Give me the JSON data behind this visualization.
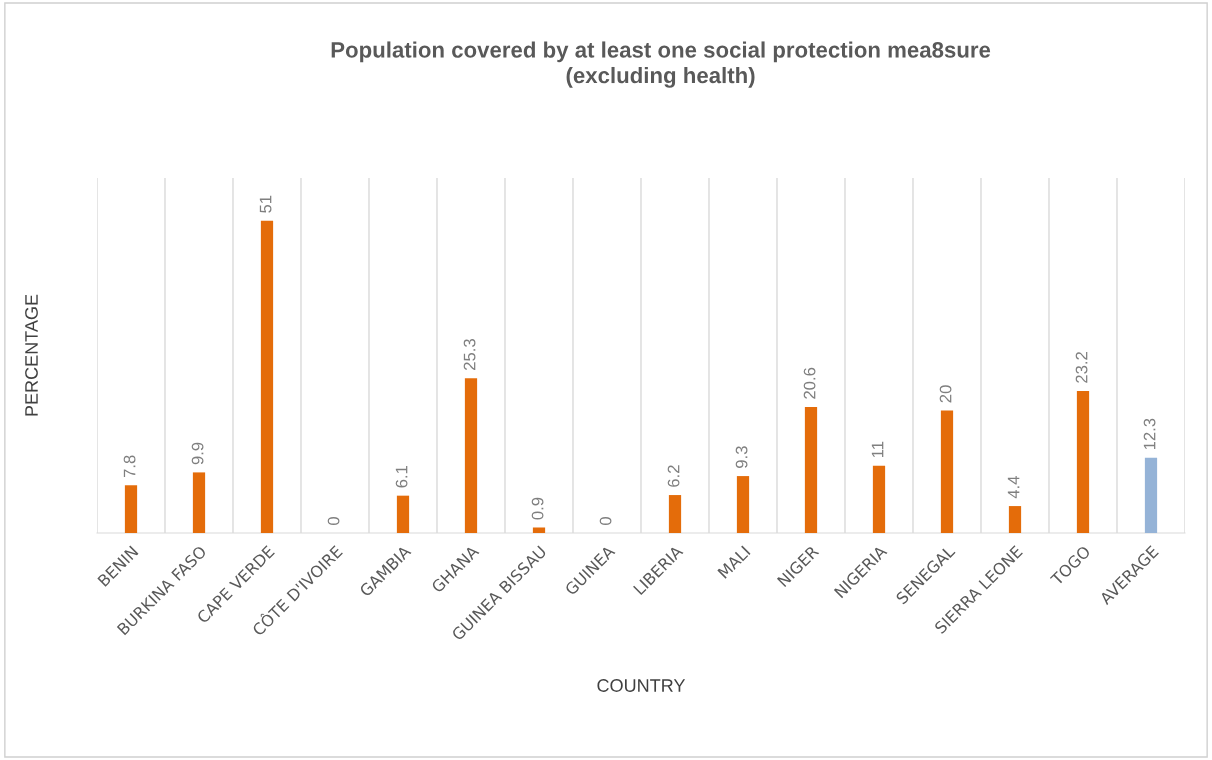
{
  "chart_data": {
    "type": "bar",
    "title": "Population covered by at least one social protection mea8sure\n(excluding health)",
    "xlabel": "COUNTRY",
    "ylabel": "PERCENTAGE",
    "categories": [
      "BENIN",
      "BURKINA FASO",
      "CAPE VERDE",
      "CÔTE D'IVOIRE",
      "GAMBIA",
      "GHANA",
      "GUINEA BISSAU",
      "GUINEA",
      "LIBERIA",
      "MALI",
      "NIGER",
      "NIGERIA",
      "SENEGAL",
      "SIERRA LEONE",
      "TOGO",
      "AVERAGE"
    ],
    "values": [
      7.8,
      9.9,
      51,
      0,
      6.1,
      25.3,
      0.9,
      0,
      6.2,
      9.3,
      20.6,
      11,
      20,
      4.4,
      23.2,
      12.3
    ],
    "colors": [
      "#e46c0a",
      "#e46c0a",
      "#e46c0a",
      "#e46c0a",
      "#e46c0a",
      "#e46c0a",
      "#e46c0a",
      "#e46c0a",
      "#e46c0a",
      "#e46c0a",
      "#e46c0a",
      "#e46c0a",
      "#e46c0a",
      "#e46c0a",
      "#e46c0a",
      "#95b3d7"
    ],
    "ylim": [
      0,
      58
    ],
    "data_labels": true,
    "grid": "x",
    "tick_labels": "x"
  }
}
